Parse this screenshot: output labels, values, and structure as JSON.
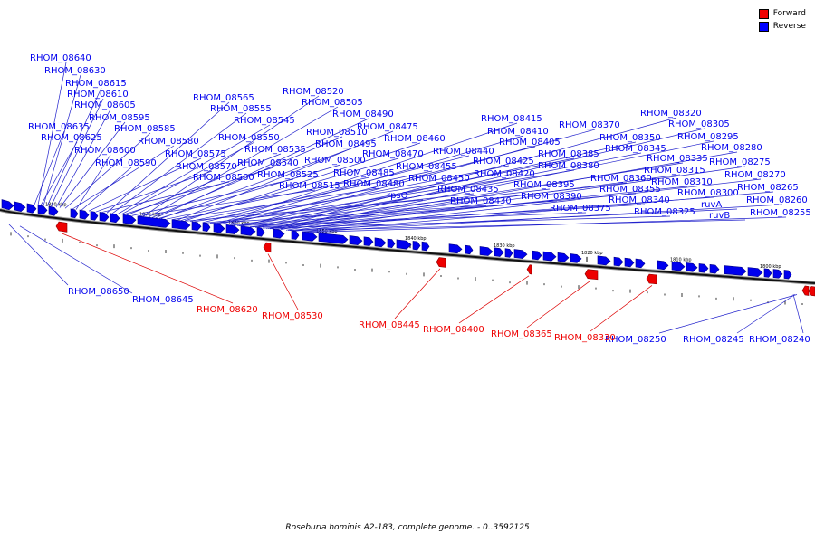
{
  "legend": [
    {
      "label": "Forward",
      "color": "#ee0000"
    },
    {
      "label": "Reverse",
      "color": "#0000ff"
    }
  ],
  "caption": "Roseburia hominis A2-183, complete genome. - 0..3592125",
  "colors": {
    "forward": "#ee0000",
    "reverse": "#0000ee",
    "axis": "#111111",
    "line_forward": "#dd0000",
    "line_reverse": "#2222cc"
  },
  "axis_ticks": [
    {
      "label": "1880 kbp"
    },
    {
      "label": "1870 kbp"
    },
    {
      "label": "1860 kbp"
    },
    {
      "label": "1850 kbp"
    },
    {
      "label": "1840 kbp"
    },
    {
      "label": "1830 kbp"
    },
    {
      "label": "1820 kbp"
    },
    {
      "label": "1810 kbp"
    },
    {
      "label": "1800 kbp"
    }
  ],
  "labels_above": [
    "RHOM_08640",
    "RHOM_08630",
    "RHOM_08615",
    "RHOM_08610",
    "RHOM_08605",
    "RHOM_08595",
    "RHOM_08635",
    "RHOM_08585",
    "RHOM_08625",
    "RHOM_08580",
    "RHOM_08600",
    "RHOM_08575",
    "RHOM_08590",
    "RHOM_08570",
    "RHOM_08560",
    "RHOM_08565",
    "RHOM_08555",
    "RHOM_08545",
    "RHOM_08550",
    "RHOM_08535",
    "RHOM_08540",
    "RHOM_08525",
    "RHOM_08515",
    "RHOM_08520",
    "RHOM_08505",
    "RHOM_08490",
    "RHOM_08510",
    "RHOM_08495",
    "RHOM_08500",
    "RHOM_08485",
    "RHOM_08480",
    "RHOM_08475",
    "RHOM_08460",
    "RHOM_08470",
    "RHOM_08455",
    "rpsO",
    "RHOM_08450",
    "RHOM_08440",
    "RHOM_08435",
    "RHOM_08430",
    "RHOM_08415",
    "RHOM_08410",
    "RHOM_08405",
    "RHOM_08425",
    "RHOM_08420",
    "RHOM_08395",
    "RHOM_08390",
    "RHOM_08375",
    "RHOM_08370",
    "RHOM_08385",
    "RHOM_08380",
    "RHOM_08350",
    "RHOM_08345",
    "RHOM_08360",
    "RHOM_08355",
    "RHOM_08340",
    "RHOM_08325",
    "RHOM_08335",
    "RHOM_08320",
    "RHOM_08305",
    "RHOM_08315",
    "RHOM_08310",
    "RHOM_08295",
    "RHOM_08300",
    "RHOM_08280",
    "RHOM_08275",
    "ruvA",
    "ruvB",
    "RHOM_08270",
    "RHOM_08265",
    "RHOM_08260",
    "RHOM_08255"
  ],
  "labels_below_reverse": [
    "RHOM_08650",
    "RHOM_08645",
    "RHOM_08250",
    "RHOM_08245",
    "RHOM_08240"
  ],
  "labels_below_forward": [
    "RHOM_08620",
    "RHOM_08530",
    "RHOM_08445",
    "RHOM_08400",
    "RHOM_08365",
    "RHOM_08330"
  ]
}
